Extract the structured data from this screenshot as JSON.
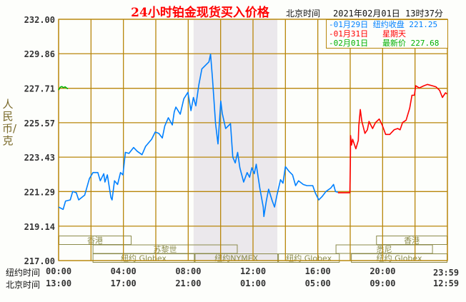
{
  "title": "24小时铂金现货买入价格",
  "timezone_label": "北京时间",
  "timestamp": "2021年02月01日 13时37分",
  "legend": [
    {
      "date": "-01月29日",
      "label": "纽约收盘",
      "value": "221.25",
      "color": "#0080ff"
    },
    {
      "date": "-01月31日",
      "label": "星期天",
      "value": "",
      "color": "#ff0000"
    },
    {
      "date": "-02月01日",
      "label": "最新价",
      "value": "227.68",
      "color": "#00b000"
    }
  ],
  "colors": {
    "grid": "#b8860b",
    "shade": "#ebe8ec",
    "band": "#8b8b4b",
    "title": "#ff0000"
  },
  "chart_data": {
    "type": "line",
    "title": "24小时铂金现货买入价格",
    "ylabel": "人民币/克",
    "ylim": [
      217.0,
      232.0
    ],
    "yticks": [
      "232.00",
      "229.86",
      "227.71",
      "225.57",
      "223.43",
      "221.29",
      "219.14",
      "217.00"
    ],
    "xlim_hours_ny": [
      0,
      24
    ],
    "xticks_ny": [
      "00:00",
      "04:00",
      "08:00",
      "12:00",
      "16:00",
      "20:00",
      "23:59"
    ],
    "xticks_bj": [
      "13:00",
      "17:00",
      "21:00",
      "01:00",
      "05:00",
      "09:00",
      "12:59"
    ],
    "xrow_labels": [
      "纽约时间",
      "北京时间"
    ],
    "grid": true,
    "shaded_session_hours": [
      8.33,
      13.5
    ],
    "markets": [
      {
        "name": "香港",
        "row": 0,
        "start": 0,
        "end": 4.5
      },
      {
        "name": "香港",
        "row": 0,
        "end": 24,
        "start": 19.6
      },
      {
        "name": "苏黎世",
        "row": 1,
        "start": 2.1,
        "end": 11.05
      },
      {
        "name": "悉尼",
        "row": 1,
        "start": 17.1,
        "end": 23.1
      },
      {
        "name": "纽约 Globex",
        "row": 2,
        "start": 2.1,
        "end": 8.4
      },
      {
        "name": "纽约NYMEX",
        "row": 2,
        "start": 8.4,
        "end": 13.55
      },
      {
        "name": "纽约 Globex",
        "row": 2,
        "start": 13.55,
        "end": 17.35
      },
      {
        "name": "纽约 Globex",
        "row": 2,
        "start": 18.05,
        "end": 24
      }
    ],
    "series": [
      {
        "name": "01月29日",
        "color": "#0080ff",
        "points": [
          [
            0,
            220.33
          ],
          [
            0.28,
            220.18
          ],
          [
            0.43,
            220.7
          ],
          [
            0.72,
            220.77
          ],
          [
            0.87,
            221.29
          ],
          [
            1.09,
            221.22
          ],
          [
            1.24,
            220.77
          ],
          [
            1.61,
            221.07
          ],
          [
            1.9,
            222.1
          ],
          [
            2.12,
            222.47
          ],
          [
            2.42,
            222.47
          ],
          [
            2.57,
            221.96
          ],
          [
            2.79,
            222.4
          ],
          [
            2.86,
            221.88
          ],
          [
            3.01,
            222.33
          ],
          [
            3.23,
            220.92
          ],
          [
            3.3,
            220.77
          ],
          [
            3.45,
            221.96
          ],
          [
            3.64,
            221.73
          ],
          [
            3.82,
            222.47
          ],
          [
            3.97,
            222.33
          ],
          [
            4.12,
            223.73
          ],
          [
            4.34,
            223.66
          ],
          [
            4.63,
            224.03
          ],
          [
            4.85,
            223.8
          ],
          [
            5.15,
            223.58
          ],
          [
            5.37,
            224.1
          ],
          [
            5.74,
            224.54
          ],
          [
            5.96,
            224.99
          ],
          [
            6.18,
            224.91
          ],
          [
            6.4,
            224.62
          ],
          [
            6.55,
            225.36
          ],
          [
            6.77,
            225.88
          ],
          [
            7.02,
            225.43
          ],
          [
            7.14,
            226.24
          ],
          [
            7.24,
            226.54
          ],
          [
            7.51,
            226.1
          ],
          [
            7.73,
            227.06
          ],
          [
            7.98,
            227.46
          ],
          [
            8.17,
            226.32
          ],
          [
            8.32,
            227.14
          ],
          [
            8.47,
            226.62
          ],
          [
            8.66,
            227.95
          ],
          [
            8.84,
            228.91
          ],
          [
            9.13,
            229.2
          ],
          [
            9.28,
            229.35
          ],
          [
            9.38,
            229.83
          ],
          [
            9.5,
            228.32
          ],
          [
            9.69,
            225.51
          ],
          [
            9.84,
            224.25
          ],
          [
            10.01,
            226.91
          ],
          [
            10.1,
            226.17
          ],
          [
            10.31,
            225.21
          ],
          [
            10.61,
            225.51
          ],
          [
            10.75,
            223.43
          ],
          [
            10.9,
            223.07
          ],
          [
            11.05,
            223.73
          ],
          [
            11.19,
            222.77
          ],
          [
            11.42,
            221.88
          ],
          [
            11.64,
            222.47
          ],
          [
            11.79,
            222.18
          ],
          [
            11.93,
            222.77
          ],
          [
            12.08,
            222.4
          ],
          [
            12.2,
            222.99
          ],
          [
            12.42,
            221.51
          ],
          [
            12.63,
            220.33
          ],
          [
            12.67,
            219.74
          ],
          [
            12.82,
            220.7
          ],
          [
            12.96,
            221.44
          ],
          [
            13.19,
            220.7
          ],
          [
            13.33,
            220.33
          ],
          [
            13.48,
            221.07
          ],
          [
            13.7,
            222.03
          ],
          [
            13.85,
            221.81
          ],
          [
            14.0,
            222.84
          ],
          [
            14.22,
            222.55
          ],
          [
            14.44,
            222.33
          ],
          [
            14.63,
            221.66
          ],
          [
            14.81,
            221.96
          ],
          [
            15.1,
            221.73
          ],
          [
            15.32,
            221.66
          ],
          [
            15.69,
            221.66
          ],
          [
            15.84,
            221.22
          ],
          [
            16.06,
            220.77
          ],
          [
            16.28,
            221.0
          ],
          [
            16.5,
            221.29
          ],
          [
            16.8,
            221.51
          ],
          [
            16.97,
            221.73
          ],
          [
            17.09,
            221.29
          ],
          [
            17.24,
            221.25
          ]
        ]
      },
      {
        "name": "01月31日",
        "color": "#ff0000",
        "points": [
          [
            17.24,
            221.22
          ],
          [
            17.98,
            221.22
          ],
          [
            18.01,
            222.99
          ],
          [
            18.02,
            224.77
          ],
          [
            18.08,
            224.18
          ],
          [
            18.15,
            224.54
          ],
          [
            18.35,
            223.95
          ],
          [
            18.5,
            224.47
          ],
          [
            18.53,
            225.36
          ],
          [
            18.62,
            226.39
          ],
          [
            18.72,
            225.65
          ],
          [
            18.91,
            224.91
          ],
          [
            19.06,
            225.13
          ],
          [
            19.16,
            225.65
          ],
          [
            19.38,
            225.21
          ],
          [
            19.56,
            225.58
          ],
          [
            19.79,
            225.8
          ],
          [
            19.97,
            225.43
          ],
          [
            20.19,
            224.84
          ],
          [
            20.44,
            224.84
          ],
          [
            20.71,
            225.13
          ],
          [
            20.93,
            225.21
          ],
          [
            21.08,
            225.13
          ],
          [
            21.23,
            225.58
          ],
          [
            21.45,
            225.73
          ],
          [
            21.67,
            226.47
          ],
          [
            21.81,
            227.28
          ],
          [
            21.96,
            227.28
          ],
          [
            22.04,
            227.87
          ],
          [
            22.26,
            227.73
          ],
          [
            22.55,
            227.87
          ],
          [
            22.77,
            227.95
          ],
          [
            23.07,
            227.87
          ],
          [
            23.29,
            227.8
          ],
          [
            23.52,
            227.58
          ],
          [
            23.69,
            227.14
          ],
          [
            23.88,
            227.43
          ],
          [
            23.98,
            227.36
          ]
        ]
      },
      {
        "name": "02月01日",
        "color": "#00b000",
        "points": [
          [
            0,
            227.6
          ],
          [
            0.1,
            227.78
          ],
          [
            0.2,
            227.82
          ],
          [
            0.3,
            227.75
          ],
          [
            0.4,
            227.8
          ],
          [
            0.5,
            227.72
          ],
          [
            0.58,
            227.68
          ]
        ]
      }
    ]
  }
}
